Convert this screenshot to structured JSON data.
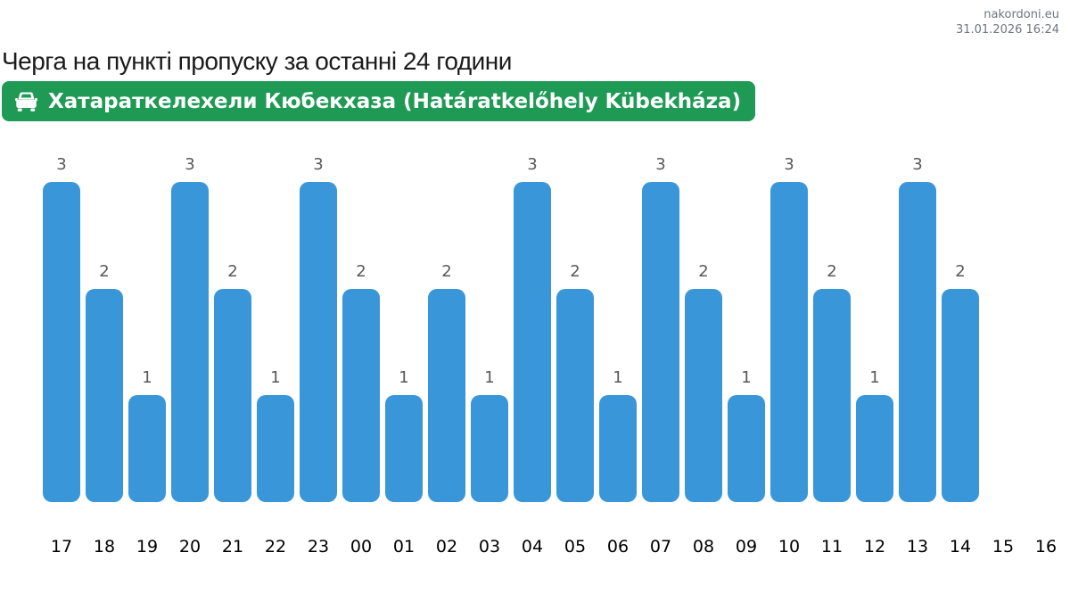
{
  "header": {
    "site": "nakordoni.eu",
    "timestamp": "31.01.2026 16:24"
  },
  "page": {
    "title": "Черга на пункті пропуску за останні 24 години"
  },
  "checkpoint_badge": {
    "label": "Хатараткелехели Кюбекхаза (Határatkelőhely Kübekháza)",
    "icon": "car-icon",
    "background_color": "#1e9a55",
    "text_color": "#ffffff"
  },
  "chart_data": {
    "type": "bar",
    "title": "Черга на пункті пропуску за останні 24 години",
    "categories": [
      "17",
      "18",
      "19",
      "20",
      "21",
      "22",
      "23",
      "00",
      "01",
      "02",
      "03",
      "04",
      "05",
      "06",
      "07",
      "08",
      "09",
      "10",
      "11",
      "12",
      "13",
      "14",
      "15",
      "16"
    ],
    "values": [
      3,
      2,
      1,
      3,
      2,
      1,
      3,
      2,
      1,
      2,
      1,
      3,
      2,
      1,
      3,
      2,
      1,
      3,
      2,
      1,
      3,
      2,
      null,
      null
    ],
    "xlabel": "",
    "ylabel": "",
    "ylim": [
      0,
      3
    ],
    "grid": false,
    "legend": false,
    "value_labels": true,
    "bar_color": "#3996d8",
    "value_label_color": "#58595b",
    "axis_label_color": "#000000"
  }
}
